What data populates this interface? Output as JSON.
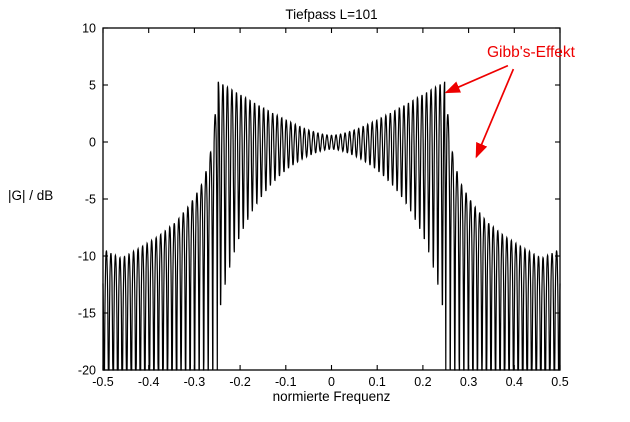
{
  "chart_data": {
    "type": "line",
    "title": "Tiefpass L=101",
    "xlabel": "normierte Frequenz",
    "ylabel": "|G| / dB",
    "xlim": [
      -0.5,
      0.5
    ],
    "ylim": [
      -20,
      10
    ],
    "xticks": [
      -0.5,
      -0.4,
      -0.3,
      -0.2,
      -0.1,
      0,
      0.1,
      0.2,
      0.3,
      0.4,
      0.5
    ],
    "xtick_labels": [
      "-0.5",
      "-0.4",
      "-0.3",
      "-0.2",
      "-0.1",
      "0",
      "0.1",
      "0.2",
      "0.3",
      "0.4",
      "0.5"
    ],
    "yticks": [
      10,
      5,
      0,
      -5,
      -10,
      -15,
      -20
    ],
    "ytick_labels": [
      "10",
      "5",
      "0",
      "-5",
      "-10",
      "-15",
      "-20"
    ],
    "line_color": "#000000",
    "axis_color": "#000000",
    "grid": false,
    "model": {
      "description": "Magnitude response |G| in dB of a length-101 FIR lowpass (truncated ideal response, cutoff 0.25) showing Gibbs ripples: passband oscillates around 0 dB with overshoot ~4.5 dB at the band edges +-0.25; stopband has nulls spaced 1/101 with peak envelope decaying from ~+4.5 dB at the edge to ~ -10 dB at +-0.5; symmetric about f=0; plot clipped at -20 dB",
      "L": 101,
      "cutoff": 0.25,
      "edge_overshoot_db": 4.5,
      "passband_ripple": {
        "r0": 0.07,
        "r_edge": 0.85,
        "power": 1.6
      },
      "stopband_top_envelope_db": [
        [
          0.25,
          4.5
        ],
        [
          0.258,
          1.0
        ],
        [
          0.268,
          -1.8
        ],
        [
          0.285,
          -3.8
        ],
        [
          0.31,
          -5.5
        ],
        [
          0.34,
          -7.0
        ],
        [
          0.38,
          -8.3
        ],
        [
          0.42,
          -9.3
        ],
        [
          0.46,
          -10.2
        ],
        [
          0.5,
          -9.4
        ]
      ],
      "clip_db": -20
    },
    "annotation": {
      "text": "Gibb's-Effekt",
      "color": "#ee0000",
      "arrows": [
        {
          "from": [
            0.386,
            6.7
          ],
          "to": [
            0.251,
            4.35
          ]
        },
        {
          "from": [
            0.398,
            6.4
          ],
          "to": [
            0.317,
            -1.3
          ]
        }
      ]
    }
  }
}
